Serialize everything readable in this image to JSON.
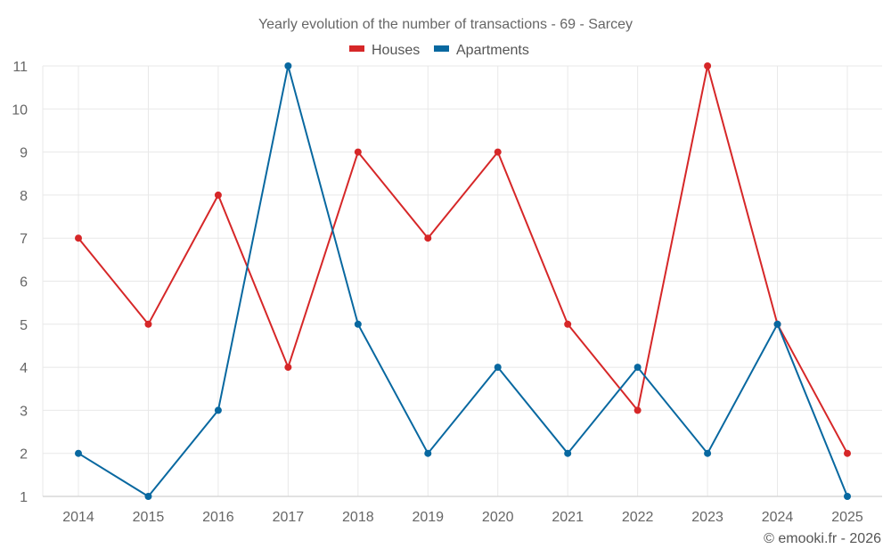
{
  "chart_data": {
    "type": "line",
    "title": "Yearly evolution of the number of transactions - 69 - Sarcey",
    "xlabel": "",
    "ylabel": "",
    "categories": [
      "2014",
      "2015",
      "2016",
      "2017",
      "2018",
      "2019",
      "2020",
      "2021",
      "2022",
      "2023",
      "2024",
      "2025"
    ],
    "yticks": [
      "1",
      "2",
      "3",
      "4",
      "5",
      "6",
      "7",
      "8",
      "9",
      "10",
      "11"
    ],
    "ylim": [
      1,
      11
    ],
    "grid": true,
    "legend_position": "top-center",
    "series": [
      {
        "name": "Houses",
        "color": "#d62728",
        "values": [
          7,
          5,
          8,
          4,
          9,
          7,
          9,
          5,
          3,
          11,
          5,
          2
        ]
      },
      {
        "name": "Apartments",
        "color": "#0868a0",
        "values": [
          2,
          1,
          3,
          11,
          5,
          2,
          4,
          2,
          4,
          2,
          5,
          1
        ]
      }
    ],
    "credit": "© emooki.fr - 2026"
  }
}
